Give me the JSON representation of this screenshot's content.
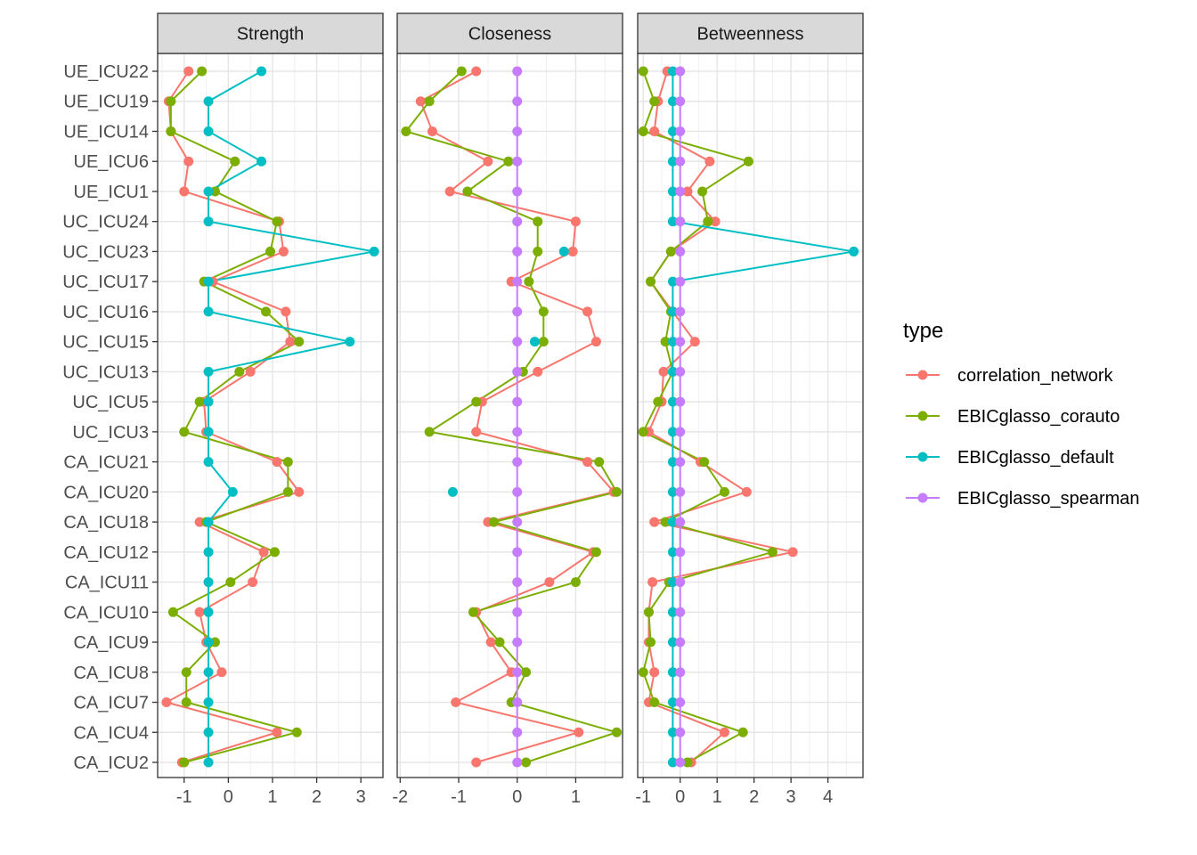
{
  "chart_data": {
    "type": "line",
    "categories": [
      "UE_ICU22",
      "UE_ICU19",
      "UE_ICU14",
      "UE_ICU6",
      "UE_ICU1",
      "UC_ICU24",
      "UC_ICU23",
      "UC_ICU17",
      "UC_ICU16",
      "UC_ICU15",
      "UC_ICU13",
      "UC_ICU5",
      "UC_ICU3",
      "CA_ICU21",
      "CA_ICU20",
      "CA_ICU18",
      "CA_ICU12",
      "CA_ICU11",
      "CA_ICU10",
      "CA_ICU9",
      "CA_ICU8",
      "CA_ICU7",
      "CA_ICU4",
      "CA_ICU2"
    ],
    "legend": {
      "title": "type",
      "position": "right"
    },
    "grid": true,
    "series_colors": {
      "correlation_network": "#F8766D",
      "EBICglasso_corauto": "#7CAE00",
      "EBICglasso_default": "#00BFC4",
      "EBICglasso_spearman": "#C77CFF"
    },
    "panels": [
      {
        "title": "Strength",
        "xlim": [
          -1.6,
          3.5
        ],
        "xticks": [
          -1,
          0,
          1,
          2,
          3
        ],
        "series": [
          {
            "name": "correlation_network",
            "values": [
              -0.9,
              -1.35,
              -1.3,
              -0.9,
              -1.0,
              1.15,
              1.25,
              -0.35,
              1.3,
              1.4,
              0.5,
              -0.55,
              -0.5,
              1.1,
              1.6,
              -0.65,
              0.8,
              0.55,
              -0.65,
              -0.5,
              -0.15,
              -1.4,
              1.1,
              -1.05
            ]
          },
          {
            "name": "EBICglasso_corauto",
            "values": [
              -0.6,
              -1.3,
              -1.3,
              0.15,
              -0.3,
              1.1,
              0.95,
              -0.55,
              0.85,
              1.6,
              0.25,
              -0.65,
              -1.0,
              1.35,
              1.35,
              -0.5,
              1.05,
              0.05,
              -1.25,
              -0.3,
              -0.95,
              -0.95,
              1.55,
              -1.0
            ]
          },
          {
            "name": "EBICglasso_default",
            "values": [
              0.75,
              -0.45,
              -0.45,
              0.75,
              -0.45,
              -0.45,
              3.3,
              -0.45,
              -0.45,
              2.75,
              -0.45,
              -0.45,
              -0.45,
              -0.45,
              0.1,
              -0.45,
              -0.45,
              -0.45,
              -0.45,
              -0.45,
              -0.45,
              -0.45,
              -0.45,
              -0.45
            ]
          }
        ]
      },
      {
        "title": "Closeness",
        "xlim": [
          -2.05,
          1.8
        ],
        "xticks": [
          -2,
          -1,
          0,
          1
        ],
        "series": [
          {
            "name": "correlation_network",
            "values": [
              -0.7,
              -1.65,
              -1.45,
              -0.5,
              -1.15,
              1.0,
              0.95,
              -0.1,
              1.2,
              1.35,
              0.35,
              -0.6,
              -0.7,
              1.2,
              1.65,
              -0.5,
              1.3,
              0.55,
              -0.7,
              -0.45,
              -0.1,
              -1.05,
              1.05,
              -0.7
            ]
          },
          {
            "name": "EBICglasso_corauto",
            "values": [
              -0.95,
              -1.5,
              -1.9,
              -0.15,
              -0.85,
              0.35,
              0.35,
              0.2,
              0.45,
              0.45,
              0.1,
              -0.7,
              -1.5,
              1.4,
              1.7,
              -0.4,
              1.35,
              1.0,
              -0.75,
              -0.3,
              0.15,
              -0.1,
              1.7,
              0.15
            ]
          },
          {
            "name": "EBICglasso_default",
            "values": [
              null,
              null,
              null,
              null,
              null,
              null,
              0.8,
              null,
              null,
              0.3,
              null,
              null,
              null,
              null,
              -1.1,
              null,
              null,
              null,
              null,
              null,
              null,
              null,
              null,
              null
            ]
          },
          {
            "name": "EBICglasso_spearman",
            "values": [
              0,
              0,
              0,
              0,
              0,
              0,
              0,
              0,
              0,
              0,
              0,
              0,
              0,
              0,
              0,
              0,
              0,
              0,
              0,
              0,
              0,
              0,
              0,
              0
            ]
          }
        ]
      },
      {
        "title": "Betweenness",
        "xlim": [
          -1.15,
          4.95
        ],
        "xticks": [
          -1,
          0,
          1,
          2,
          3,
          4
        ],
        "series": [
          {
            "name": "correlation_network",
            "values": [
              -0.35,
              -0.6,
              -0.7,
              0.8,
              0.2,
              0.95,
              -0.25,
              -0.8,
              -0.2,
              0.4,
              -0.45,
              -0.5,
              -0.85,
              0.55,
              1.8,
              -0.7,
              3.05,
              -0.75,
              -0.85,
              -0.85,
              -0.7,
              -0.85,
              1.2,
              0.3
            ]
          },
          {
            "name": "EBICglasso_corauto",
            "values": [
              -1.0,
              -0.7,
              -1.0,
              1.85,
              0.6,
              0.75,
              -0.25,
              -0.8,
              -0.25,
              -0.4,
              -0.2,
              -0.6,
              -1.0,
              0.65,
              1.2,
              -0.4,
              2.5,
              -0.3,
              -0.85,
              -0.8,
              -1.0,
              -0.7,
              1.7,
              0.2
            ]
          },
          {
            "name": "EBICglasso_default",
            "values": [
              -0.2,
              -0.2,
              -0.2,
              -0.2,
              -0.2,
              -0.2,
              4.7,
              -0.2,
              -0.2,
              -0.2,
              -0.2,
              -0.2,
              -0.2,
              -0.2,
              -0.2,
              -0.2,
              -0.2,
              -0.2,
              -0.2,
              -0.2,
              -0.2,
              -0.2,
              -0.2,
              -0.2
            ]
          },
          {
            "name": "EBICglasso_spearman",
            "values": [
              0,
              0,
              0,
              0,
              0,
              0,
              0,
              0,
              0,
              0,
              0,
              0,
              0,
              0,
              0,
              0,
              0,
              0,
              0,
              0,
              0,
              0,
              0,
              0
            ]
          }
        ]
      }
    ],
    "legend_entries": [
      "correlation_network",
      "EBICglasso_corauto",
      "EBICglasso_default",
      "EBICglasso_spearman"
    ]
  }
}
